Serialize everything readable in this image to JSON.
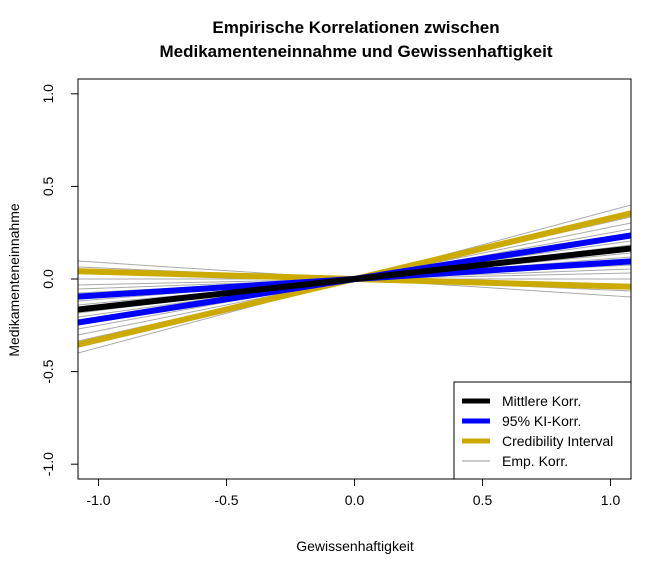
{
  "chart_data": {
    "type": "line",
    "title": [
      "Empirische Korrelationen zwischen",
      "Medikamenteneinnahme und Gewissenhaftigkeit"
    ],
    "xlabel": "Gewissenhaftigkeit",
    "ylabel": "Medikamenteneinnahme",
    "xlim": [
      -1.08,
      1.08
    ],
    "ylim": [
      -1.08,
      1.08
    ],
    "xticks": [
      -1.0,
      -0.5,
      0.0,
      0.5,
      1.0
    ],
    "xtick_labels": [
      "-1.0",
      "-0.5",
      "0.0",
      "0.5",
      "1.0"
    ],
    "yticks": [
      -1.0,
      -0.5,
      0.0,
      0.5,
      1.0
    ],
    "ytick_labels": [
      "-1.0",
      "-0.5",
      "0.0",
      "0.5",
      "1.0"
    ],
    "grid": false,
    "legend_position": "bottom-right",
    "series": [
      {
        "name": "Mittlere Korr.",
        "color": "#000000",
        "width": "thick",
        "x": [
          -1.08,
          1.08
        ],
        "y": [
          -0.165,
          0.165
        ]
      },
      {
        "name": "95% KI-Korr.",
        "color": "#0000ff",
        "width": "thick",
        "x": [
          -1.08,
          1.08
        ],
        "y": [
          -0.235,
          0.235
        ]
      },
      {
        "name": "95% KI-Korr.",
        "color": "#0000ff",
        "width": "thick",
        "x": [
          -1.08,
          1.08
        ],
        "y": [
          -0.095,
          0.095
        ]
      },
      {
        "name": "Credibility Interval",
        "color": "#ccaa00",
        "width": "thick",
        "x": [
          -1.08,
          1.08
        ],
        "y": [
          -0.355,
          0.355
        ]
      },
      {
        "name": "Credibility Interval",
        "color": "#ccaa00",
        "width": "thick",
        "x": [
          -1.08,
          1.08
        ],
        "y": [
          0.042,
          -0.042
        ]
      },
      {
        "name": "Emp. Korr.",
        "color": "#aaaaaa",
        "width": "thin",
        "slopes": [
          0.37,
          0.34,
          0.31,
          0.28,
          0.25,
          0.23,
          0.21,
          0.19,
          0.17,
          0.15,
          0.13,
          0.11,
          0.09,
          0.07,
          0.05,
          0.03,
          0.0,
          -0.03,
          -0.06,
          -0.09
        ]
      }
    ],
    "legend": [
      {
        "label": "Mittlere Korr.",
        "color": "#000000",
        "style": "thick"
      },
      {
        "label": "95% KI-Korr.",
        "color": "#0000ff",
        "style": "thick"
      },
      {
        "label": "Credibility Interval",
        "color": "#ccaa00",
        "style": "thick"
      },
      {
        "label": "Emp. Korr.",
        "color": "#aaaaaa",
        "style": "thin"
      }
    ]
  }
}
